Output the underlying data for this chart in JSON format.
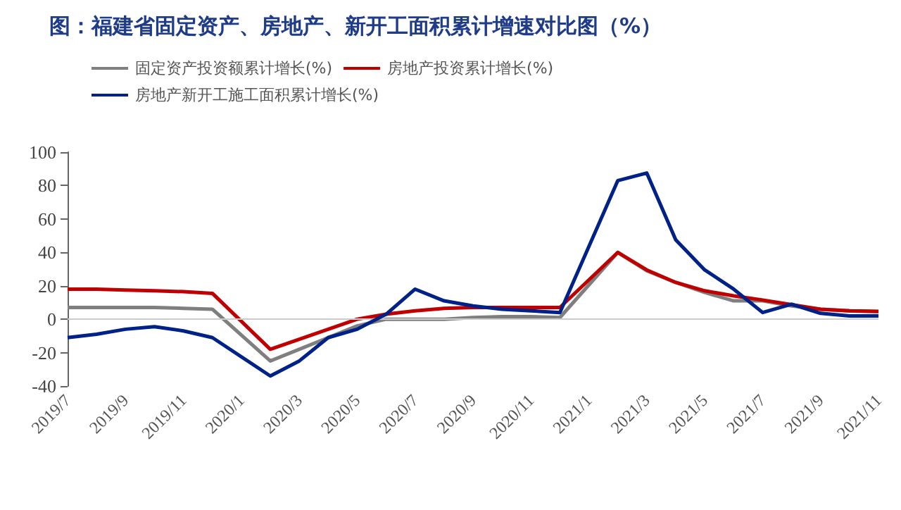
{
  "chart_data": {
    "type": "line",
    "title": "图：福建省固定资产、房地产、新开工面积累计增速对比图（%）",
    "categories": [
      "2019/7",
      null,
      "2019/9",
      null,
      "2019/11",
      null,
      "2020/1",
      null,
      "2020/3",
      null,
      "2020/5",
      null,
      "2020/7",
      null,
      "2020/9",
      null,
      "2020/11",
      null,
      "2021/1",
      null,
      "2021/3",
      null,
      "2021/5",
      null,
      "2021/7",
      null,
      "2021/9",
      null,
      "2021/11"
    ],
    "series": [
      {
        "name": "固定资产投资额累计增长(%)",
        "color": "#7f7f7f",
        "values": [
          7,
          7,
          7,
          7,
          6.5,
          6,
          null,
          -25,
          -18,
          -11,
          -4,
          0,
          0,
          0,
          1,
          1.5,
          1.5,
          1,
          null,
          40,
          29,
          22,
          16,
          11,
          11,
          8,
          6,
          5,
          4.5
        ]
      },
      {
        "name": "房地产投资累计增长(%)",
        "color": "#c00000",
        "values": [
          18,
          18,
          17.5,
          17,
          16.5,
          15.5,
          null,
          -18,
          -12,
          -6,
          0,
          3,
          5,
          6.5,
          7,
          7,
          7,
          7,
          null,
          40,
          29.5,
          22,
          17,
          14,
          11.5,
          8.7,
          6,
          5,
          4.7
        ]
      },
      {
        "name": "房地产新开工施工面积累计增长(%)",
        "color": "#002288",
        "values": [
          -11,
          -9,
          -6,
          -4.5,
          -7,
          -11,
          null,
          -34,
          -25,
          -11,
          -6,
          3,
          18,
          11,
          8,
          6,
          5,
          4,
          null,
          83,
          87.5,
          47.5,
          29.5,
          18,
          4,
          9,
          3.5,
          2,
          2
        ]
      }
    ],
    "ylim": [
      -40,
      100
    ],
    "yticks": [
      -40,
      -20,
      0,
      20,
      40,
      60,
      80,
      100
    ],
    "ref_lines": [
      {
        "axis": "y",
        "value": 0,
        "color": "#cccccc"
      }
    ],
    "grid": false,
    "legend": "top",
    "marker": "none",
    "line_style": "solid"
  }
}
